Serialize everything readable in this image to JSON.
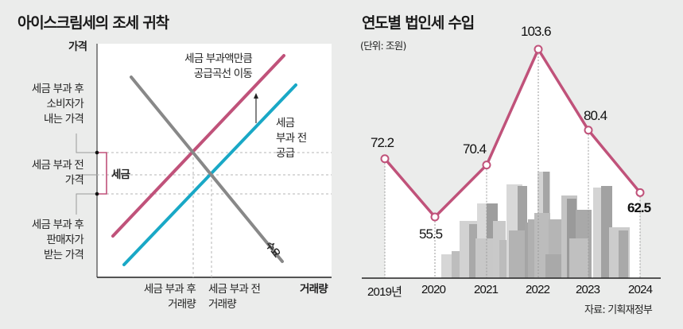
{
  "colors": {
    "tax_supply": "#c0527a",
    "original_supply": "#19a8c6",
    "demand": "#888888",
    "revenue_line": "#c0527a",
    "building_light": "#cfcfcf",
    "building_dark": "#9a9a9a"
  },
  "chart_data": [
    {
      "type": "diagram",
      "title": "아이스크림세의 조세 귀착",
      "ylabel": "가격",
      "xlabel": "거래량",
      "y_markers": [
        {
          "label": "세금 부과후 소비자가 내는 가격",
          "lines": [
            "세금 부과 후",
            "소비자가",
            "내는 가격"
          ]
        },
        {
          "label": "세금 부과 전 가격",
          "lines": [
            "세금 부과 전",
            "가격"
          ]
        },
        {
          "label": "세금 부과후 판매자가 받는 가격",
          "lines": [
            "세금 부과 후",
            "판매자가",
            "받는 가격"
          ]
        }
      ],
      "x_markers": [
        {
          "lines": [
            "세금 부과 후",
            "거래량"
          ]
        },
        {
          "lines": [
            "세금 부과 전",
            "거래량"
          ]
        }
      ],
      "bracket_label": "세금",
      "annotations": {
        "shift": [
          "세금 부과액만큼",
          "공급곡선 이동"
        ],
        "original_supply": [
          "세금",
          "부과 전",
          "공급"
        ],
        "demand": "수요"
      },
      "series": [
        {
          "name": "세금 부과 후 공급",
          "kind": "supply-shifted"
        },
        {
          "name": "세금 부과 전 공급",
          "kind": "supply"
        },
        {
          "name": "수요",
          "kind": "demand"
        }
      ]
    },
    {
      "type": "line",
      "title": "연도별 법인세 수입",
      "subtitle": "(단위: 조원)",
      "categories": [
        "2019년",
        "2020",
        "2021",
        "2022",
        "2023",
        "2024"
      ],
      "values": [
        72.2,
        55.5,
        70.4,
        103.6,
        80.4,
        62.5
      ],
      "value_labels": [
        "72.2",
        "55.5",
        "70.4",
        "103.6",
        "80.4",
        "62.5"
      ],
      "source": "자료: 기획재정부",
      "ylim": [
        45,
        110
      ],
      "grid": false
    }
  ]
}
